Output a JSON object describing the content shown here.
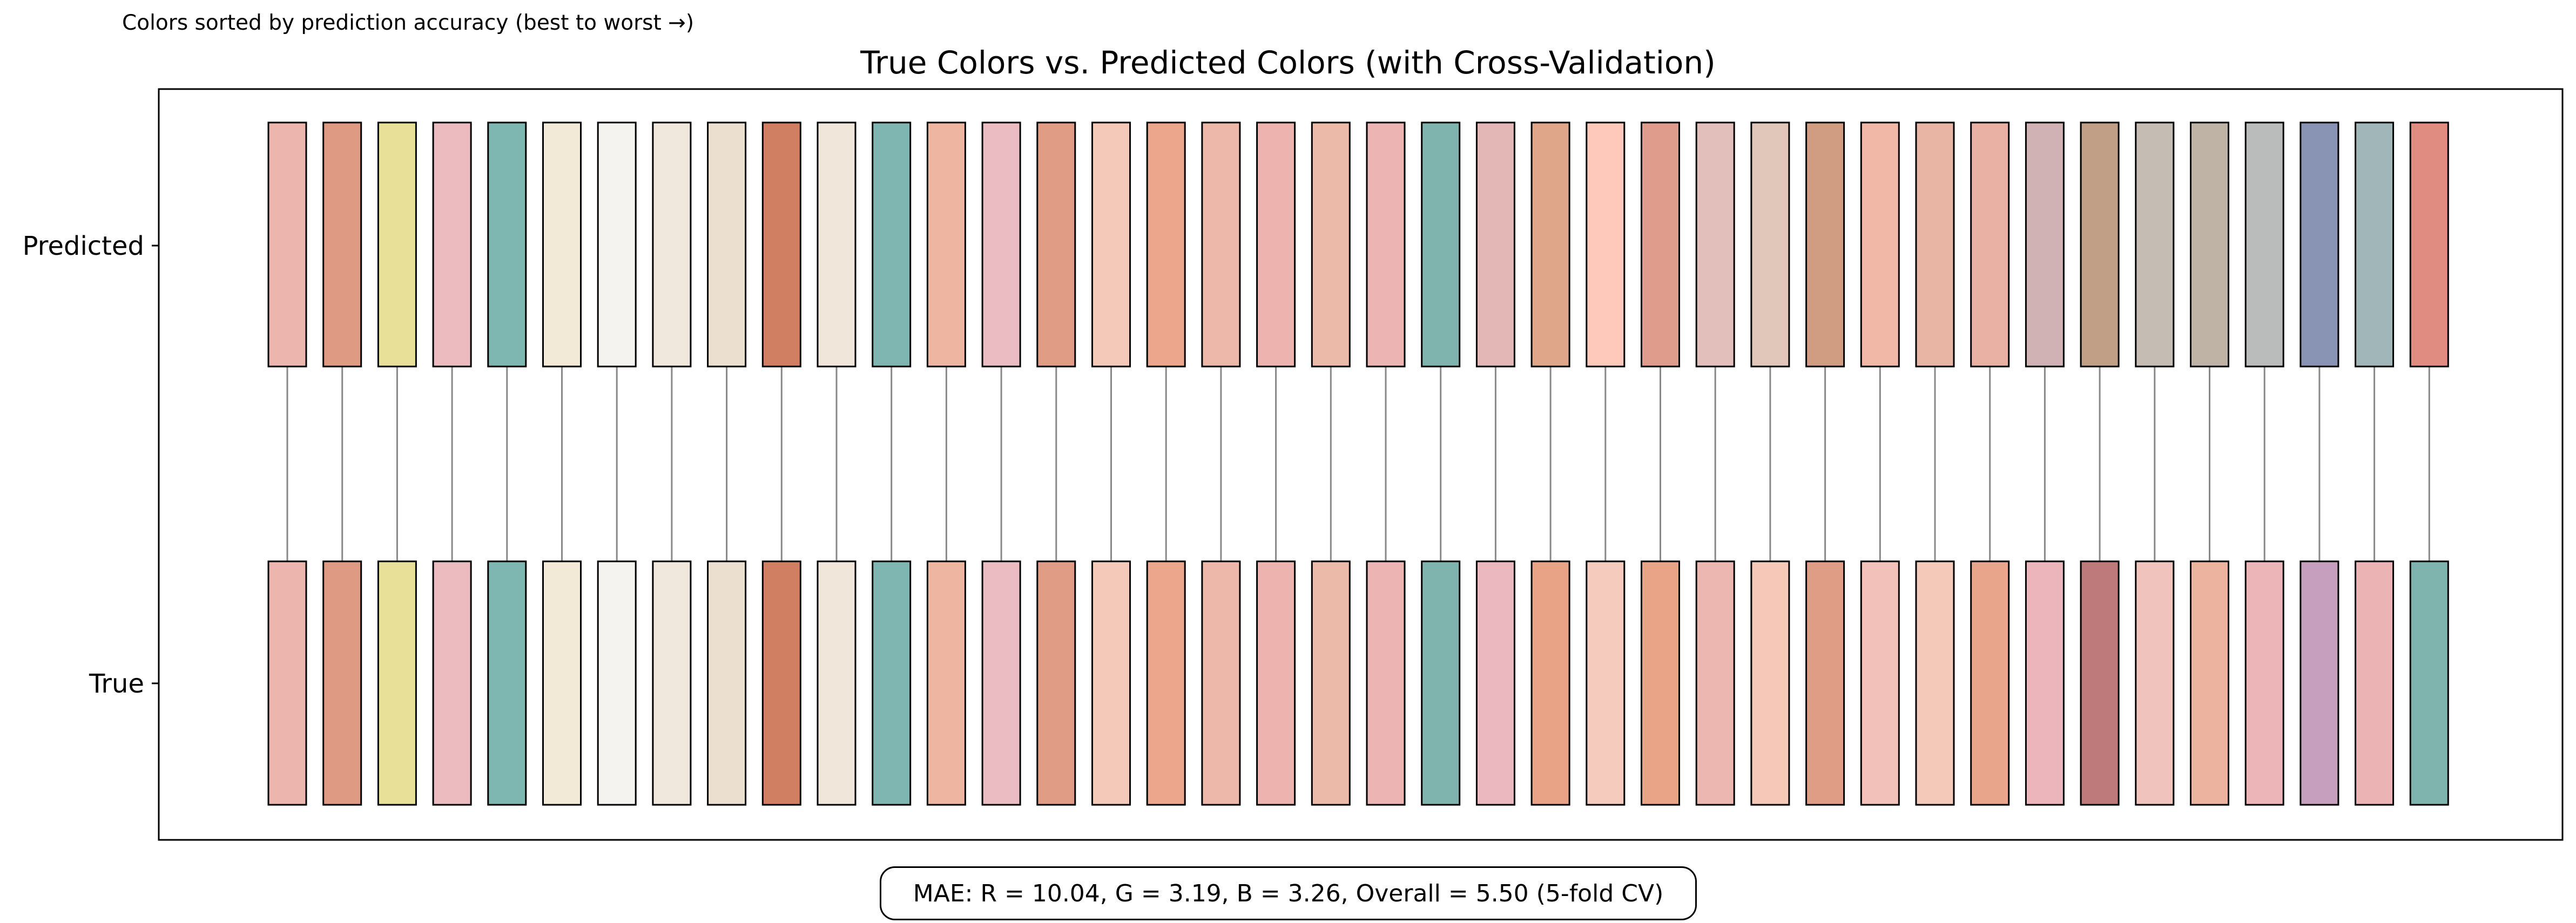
{
  "chart_data": {
    "type": "color-swatch-comparison",
    "title": "True Colors vs. Predicted Colors (with Cross-Validation)",
    "subtitle": "Colors sorted by prediction accuracy (best to worst →)",
    "rows": [
      "Predicted",
      "True"
    ],
    "predicted_colors": [
      "#ecb5ad",
      "#df9a83",
      "#e8e098",
      "#ebbbbf",
      "#7eb6b1",
      "#f2e9d6",
      "#f5f3ef",
      "#f0e7dd",
      "#ebdfd0",
      "#d07f62",
      "#f0e6da",
      "#80b6b2",
      "#eeb5a0",
      "#ebbcc1",
      "#e19c86",
      "#f4c9ba",
      "#eba68c",
      "#edb8a9",
      "#ecb3af",
      "#ecbaa8",
      "#edb4b4",
      "#7fb3ae",
      "#e3b7b5",
      "#e0a68a",
      "#fec9bb",
      "#df9c8d",
      "#e2bfbb",
      "#e1c7b9",
      "#d09d82",
      "#f1b7a7",
      "#e8b5a5",
      "#e8b1a3",
      "#d0b2b4",
      "#c19e86",
      "#c5bdb4",
      "#bfb3a6",
      "#b9bcba",
      "#8993b4",
      "#a1b6b8",
      "#e08c80"
    ],
    "true_colors": [
      "#ecb5ad",
      "#df9a83",
      "#e8e098",
      "#ebbbbf",
      "#7eb6b1",
      "#f2e9d6",
      "#f5f3ef",
      "#f0e7dd",
      "#ebdfd0",
      "#d07f62",
      "#f0e6da",
      "#80b6b2",
      "#eeb5a0",
      "#ebbcc1",
      "#e19c86",
      "#f4c9ba",
      "#eba68c",
      "#edb8a9",
      "#ecb3af",
      "#ecbaa8",
      "#edb4b4",
      "#7fb3ae",
      "#ebb8c0",
      "#e8a386",
      "#f4cbbd",
      "#e9a386",
      "#ecb7b1",
      "#f6c8b7",
      "#e09d86",
      "#f1c1ba",
      "#f4c9b9",
      "#e8a58b",
      "#ecb5bb",
      "#be797a",
      "#f1c3bd",
      "#ecb39f",
      "#ecb6b8",
      "#c69fbe",
      "#ecb3b4",
      "#7fb3ae"
    ]
  },
  "mae_text": "MAE: R = 10.04, G = 3.19, B = 3.26, Overall = 5.50 (5-fold CV)"
}
